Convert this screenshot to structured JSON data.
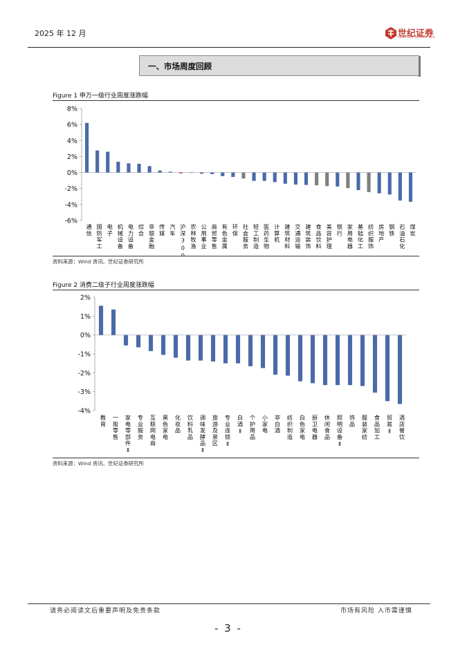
{
  "header": {
    "date": "2025 年 12 月",
    "logo_text": "世纪证券",
    "logo_subtext": "CENTURY SECURITIES",
    "accent_color": "#c0392b"
  },
  "section": {
    "title": "一、市场周度回顾"
  },
  "figure1": {
    "title": "Figure 1  申万一级行业周度涨跌幅",
    "source": "资料来源：Wind 资讯、世纪证券研究所"
  },
  "figure2": {
    "title": "Figure 2 消费二级子行业周度涨跌幅",
    "source": "资料来源：Wind 资讯、世纪证券研究所"
  },
  "chart_data": [
    {
      "type": "bar",
      "title": "申万一级行业周度涨跌幅",
      "ylim": [
        -6,
        8
      ],
      "yticks": [
        8,
        6,
        4,
        2,
        0,
        -2,
        -4,
        -6
      ],
      "tick_format": "percent",
      "categories": [
        "通信",
        "国防军工",
        "电子",
        "机械设备",
        "电力设备",
        "综合",
        "非银金融",
        "传媒",
        "汽车",
        "沪深300",
        "农林牧渔",
        "公用事业",
        "商贸零售",
        "有色金属",
        "环保",
        "社会服务",
        "轻工制造",
        "医药生物",
        "计算机",
        "建筑材料",
        "交通运输",
        "建筑装饰",
        "食品饮料",
        "美容护理",
        "银行",
        "家用电器",
        "基础化工",
        "纺织服饰",
        "房地产",
        "钢铁",
        "石油石化",
        "煤炭"
      ],
      "values": [
        6.2,
        2.75,
        2.6,
        1.35,
        1.15,
        1.1,
        0.8,
        0.25,
        0.1,
        -0.1,
        -0.05,
        -0.15,
        -0.2,
        -0.45,
        -0.55,
        -0.75,
        -1.05,
        -1.05,
        -1.2,
        -1.4,
        -1.5,
        -1.55,
        -1.6,
        -1.7,
        -1.75,
        -1.95,
        -2.2,
        -2.45,
        -2.6,
        -2.75,
        -3.5,
        -3.65
      ],
      "colors": [
        "#4a6aa9",
        "#4a6aa9",
        "#4a6aa9",
        "#4a6aa9",
        "#4a6aa9",
        "#4a6aa9",
        "#4a6aa9",
        "#4a6aa9",
        "#4a6aa9",
        "#cc2a2a",
        "#4a6aa9",
        "#4a6aa9",
        "#4a6aa9",
        "#4a6aa9",
        "#4a6aa9",
        "#7f7f7f",
        "#4a6aa9",
        "#4a6aa9",
        "#4a6aa9",
        "#4a6aa9",
        "#4a6aa9",
        "#4a6aa9",
        "#7f7f7f",
        "#7f7f7f",
        "#4a6aa9",
        "#7f7f7f",
        "#4a6aa9",
        "#7f7f7f",
        "#4a6aa9",
        "#4a6aa9",
        "#4a6aa9",
        "#4a6aa9"
      ]
    },
    {
      "type": "bar",
      "title": "消费二级子行业周度涨跌幅",
      "ylim": [
        -4,
        2
      ],
      "yticks": [
        2,
        1,
        0,
        -1,
        -2,
        -3,
        -4
      ],
      "tick_format": "percent",
      "categories": [
        "教育",
        "一般零售",
        "家电零部件Ⅱ",
        "专业服务",
        "互联网电商",
        "黑色家电",
        "化妆品",
        "饮料乳品",
        "调味发酵品Ⅱ",
        "旅游及景区",
        "专业连锁Ⅱ",
        "白酒Ⅱ",
        "个护用品",
        "小家电",
        "非白酒",
        "纺织制造",
        "白色家电",
        "厨卫电器",
        "休闲食品",
        "照明设备Ⅱ",
        "饰品",
        "服装家纺",
        "食品加工",
        "贸易Ⅱ",
        "酒店餐饮"
      ],
      "values": [
        1.55,
        1.35,
        -0.55,
        -0.65,
        -0.85,
        -1.05,
        -1.2,
        -1.35,
        -1.35,
        -1.4,
        -1.5,
        -1.5,
        -1.65,
        -1.75,
        -2.1,
        -2.15,
        -2.45,
        -2.55,
        -2.65,
        -2.65,
        -2.65,
        -2.7,
        -3.05,
        -3.5,
        -3.65
      ],
      "colors": [
        "#4a6aa9"
      ]
    }
  ]
}
